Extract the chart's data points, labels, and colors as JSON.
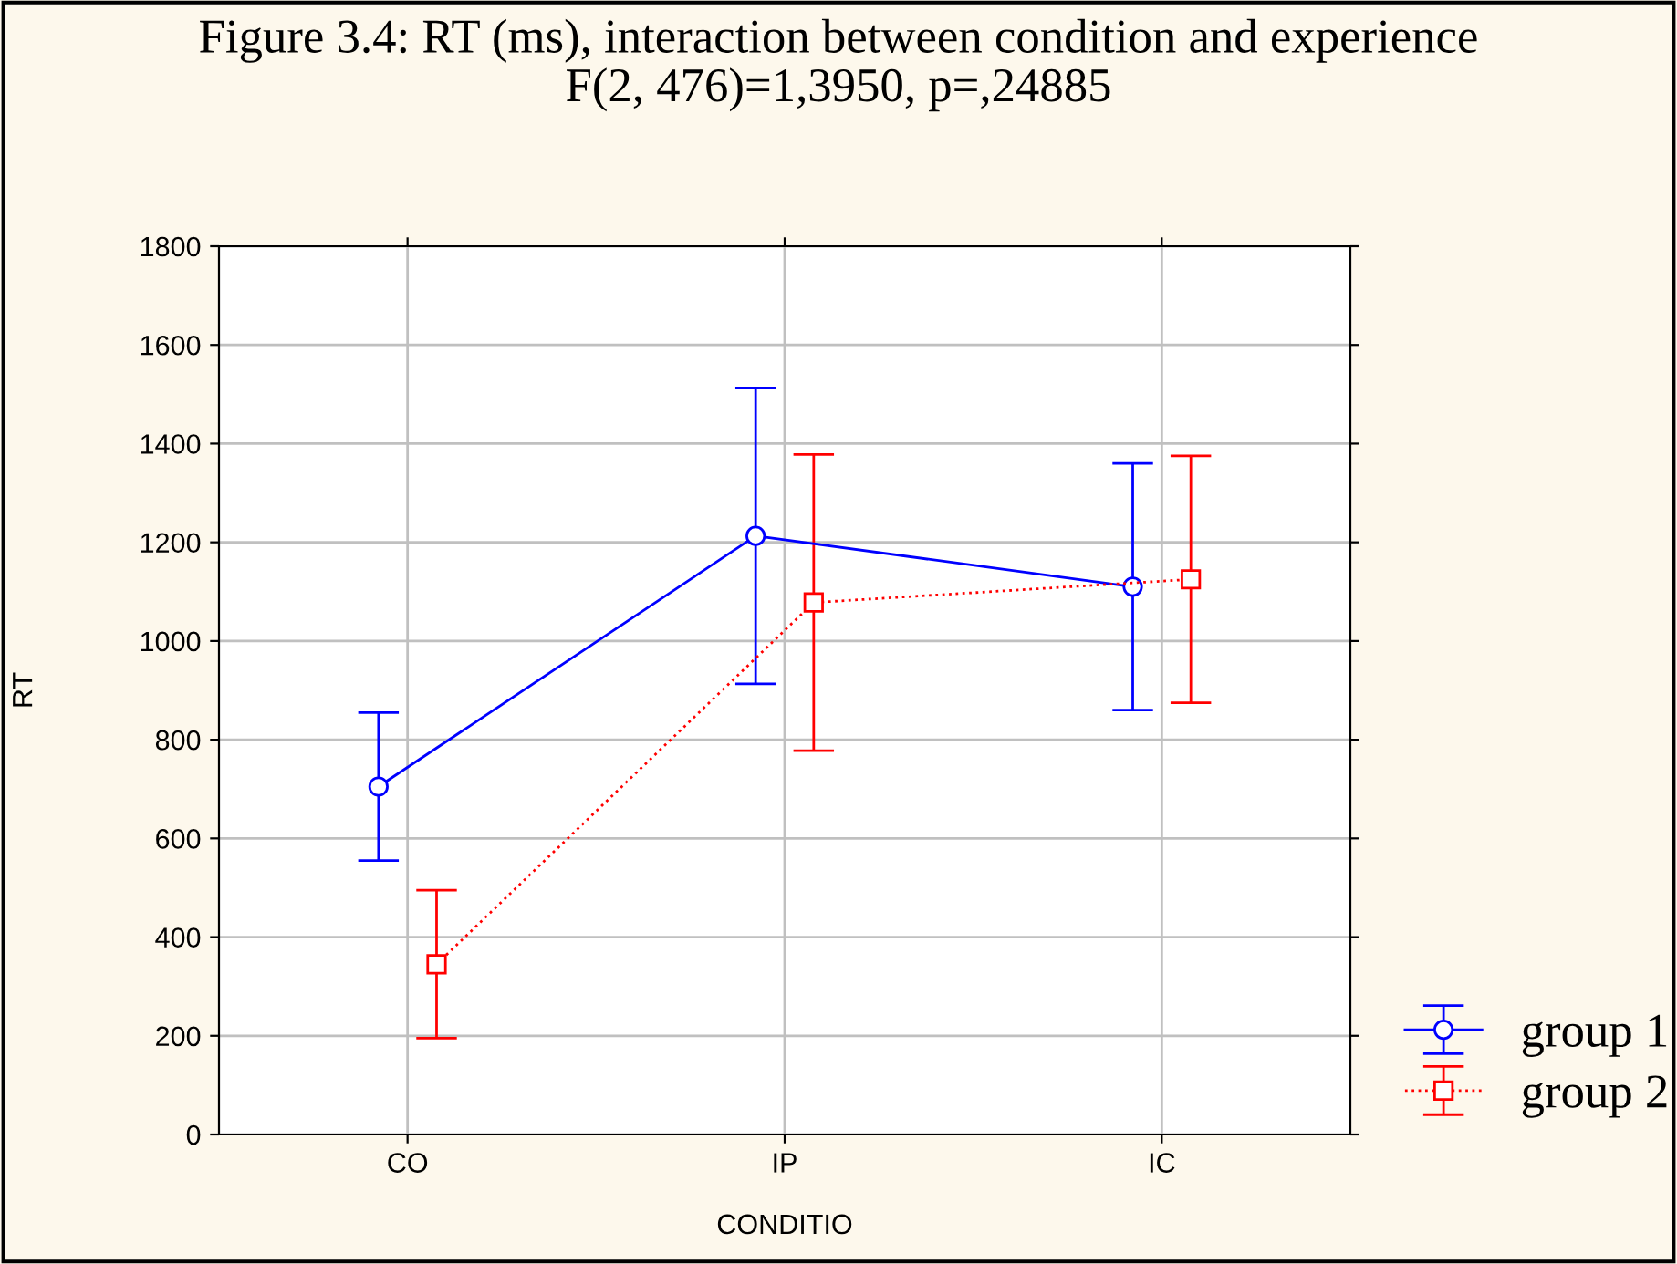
{
  "chart_data": {
    "type": "line",
    "title": "Figure 3.4: RT (ms), interaction between condition and experience\nF(2, 476)=1,3950, p=,24885",
    "xlabel": "CONDITIO",
    "ylabel": "RT",
    "categories": [
      "CO",
      "IP",
      "IC"
    ],
    "series": [
      {
        "name": "group 1",
        "color": "#0000ff",
        "values": [
          705,
          1213,
          1110
        ],
        "errors": [
          150,
          300,
          250
        ],
        "marker": "circle",
        "line_style": "solid"
      },
      {
        "name": "group 2",
        "color": "#ff0000",
        "values": [
          345,
          1078,
          1125
        ],
        "errors": [
          150,
          300,
          250
        ],
        "marker": "square",
        "line_style": "dotted"
      }
    ],
    "ylim": [
      0,
      1800
    ],
    "yticks": [
      0,
      200,
      400,
      600,
      800,
      1000,
      1200,
      1400,
      1600,
      1800
    ],
    "grid": true,
    "legend": "bottom right"
  }
}
